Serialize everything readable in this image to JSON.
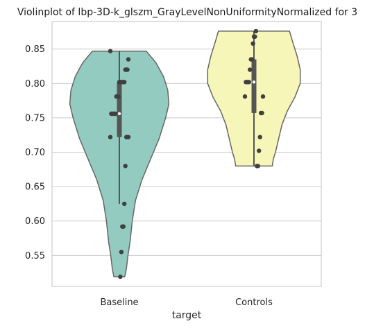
{
  "chart_data": {
    "type": "violin",
    "title": "Violinplot of lbp-3D-k_glszm_GrayLevelNonUniformityNormalized for 3",
    "xlabel": "target",
    "ylabel": "",
    "categories": [
      "Baseline",
      "Controls"
    ],
    "ylim": [
      0.505,
      0.89
    ],
    "yticks": [
      0.55,
      0.6,
      0.65,
      0.7,
      0.75,
      0.8,
      0.85
    ],
    "ytick_labels": [
      "0.55",
      "0.60",
      "0.65",
      "0.70",
      "0.75",
      "0.80",
      "0.85"
    ],
    "grid": "horizontal",
    "colors": {
      "Baseline": "#93cbc1",
      "Controls": "#f6f6b8",
      "outline": "#666666",
      "points": "#404040",
      "box": "#555555",
      "grid": "#cccccc",
      "spine": "#cccccc"
    },
    "series": [
      {
        "name": "Baseline",
        "min": 0.519,
        "max": 0.847,
        "q1": 0.722,
        "median": 0.756,
        "q3": 0.801,
        "whisker_low": 0.625,
        "whisker_high": 0.847,
        "violin_half_widths": [
          [
            0.519,
            0.1
          ],
          [
            0.53,
            0.13
          ],
          [
            0.55,
            0.16
          ],
          [
            0.57,
            0.2
          ],
          [
            0.6,
            0.24
          ],
          [
            0.63,
            0.3
          ],
          [
            0.66,
            0.42
          ],
          [
            0.69,
            0.58
          ],
          [
            0.72,
            0.74
          ],
          [
            0.75,
            0.86
          ],
          [
            0.77,
            0.92
          ],
          [
            0.79,
            0.9
          ],
          [
            0.81,
            0.82
          ],
          [
            0.83,
            0.68
          ],
          [
            0.847,
            0.5
          ]
        ],
        "points": [
          0.847,
          0.835,
          0.82,
          0.82,
          0.82,
          0.802,
          0.802,
          0.802,
          0.802,
          0.802,
          0.802,
          0.781,
          0.781,
          0.781,
          0.756,
          0.756,
          0.756,
          0.756,
          0.756,
          0.722,
          0.722,
          0.722,
          0.722,
          0.68,
          0.625,
          0.592,
          0.592,
          0.555,
          0.519
        ]
      },
      {
        "name": "Controls",
        "min": 0.68,
        "max": 0.876,
        "q1": 0.757,
        "median": 0.802,
        "q3": 0.835,
        "whisker_low": 0.68,
        "whisker_high": 0.876,
        "violin_half_widths": [
          [
            0.68,
            0.34
          ],
          [
            0.69,
            0.36
          ],
          [
            0.7,
            0.4
          ],
          [
            0.72,
            0.46
          ],
          [
            0.74,
            0.52
          ],
          [
            0.76,
            0.62
          ],
          [
            0.78,
            0.76
          ],
          [
            0.8,
            0.86
          ],
          [
            0.82,
            0.86
          ],
          [
            0.84,
            0.8
          ],
          [
            0.86,
            0.72
          ],
          [
            0.876,
            0.66
          ]
        ],
        "points": [
          0.876,
          0.868,
          0.868,
          0.858,
          0.835,
          0.835,
          0.82,
          0.802,
          0.802,
          0.802,
          0.802,
          0.781,
          0.781,
          0.757,
          0.757,
          0.722,
          0.702,
          0.68,
          0.68
        ]
      }
    ]
  }
}
